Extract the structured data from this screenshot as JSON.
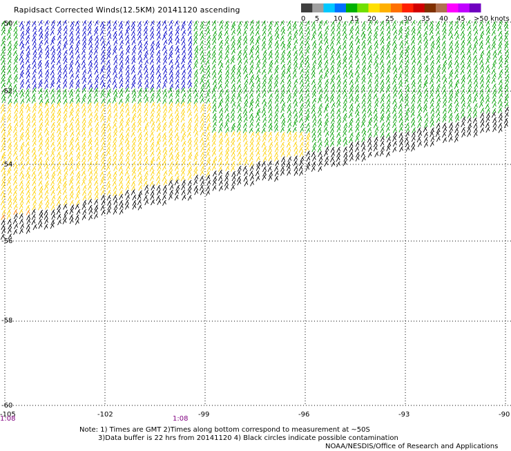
{
  "title": "Rapidsact Corrected Winds(12.5KM) 20141120 ascending",
  "legend": {
    "labels": [
      "0",
      "5",
      "10",
      "15",
      "20",
      "25",
      "30",
      "35",
      "40",
      "45",
      ">50 knots"
    ],
    "colors": [
      "#404040",
      "#a0a0a0",
      "#00c8ff",
      "#0070ff",
      "#00b000",
      "#70e000",
      "#ffe000",
      "#ffb000",
      "#ff7000",
      "#ff2000",
      "#d00000",
      "#803000",
      "#b07050",
      "#ff00ff",
      "#c000ff",
      "#7000c0"
    ]
  },
  "axes": {
    "lat_labels": [
      "-50",
      "-52",
      "-54",
      "-56",
      "-58",
      "-60"
    ],
    "lon_labels": [
      "-105",
      "-102",
      "-99",
      "-96",
      "-93",
      "-90"
    ]
  },
  "time_labels": [
    "1:08",
    "1:08"
  ],
  "notes": {
    "line1": "Note: 1) Times are GMT 2)Times along bottom correspond to measurement at ~50S",
    "line2": "3)Data buffer is 22 hrs from 20141120 4) Black circles indicate possible contamination",
    "line3": "NOAA/NESDIS/Office of Research and Applications"
  },
  "wind_colors": {
    "blue": "#0000c8",
    "green": "#00a000",
    "yellow": "#ffd000",
    "orange": "#ff8000",
    "black": "#000000"
  }
}
